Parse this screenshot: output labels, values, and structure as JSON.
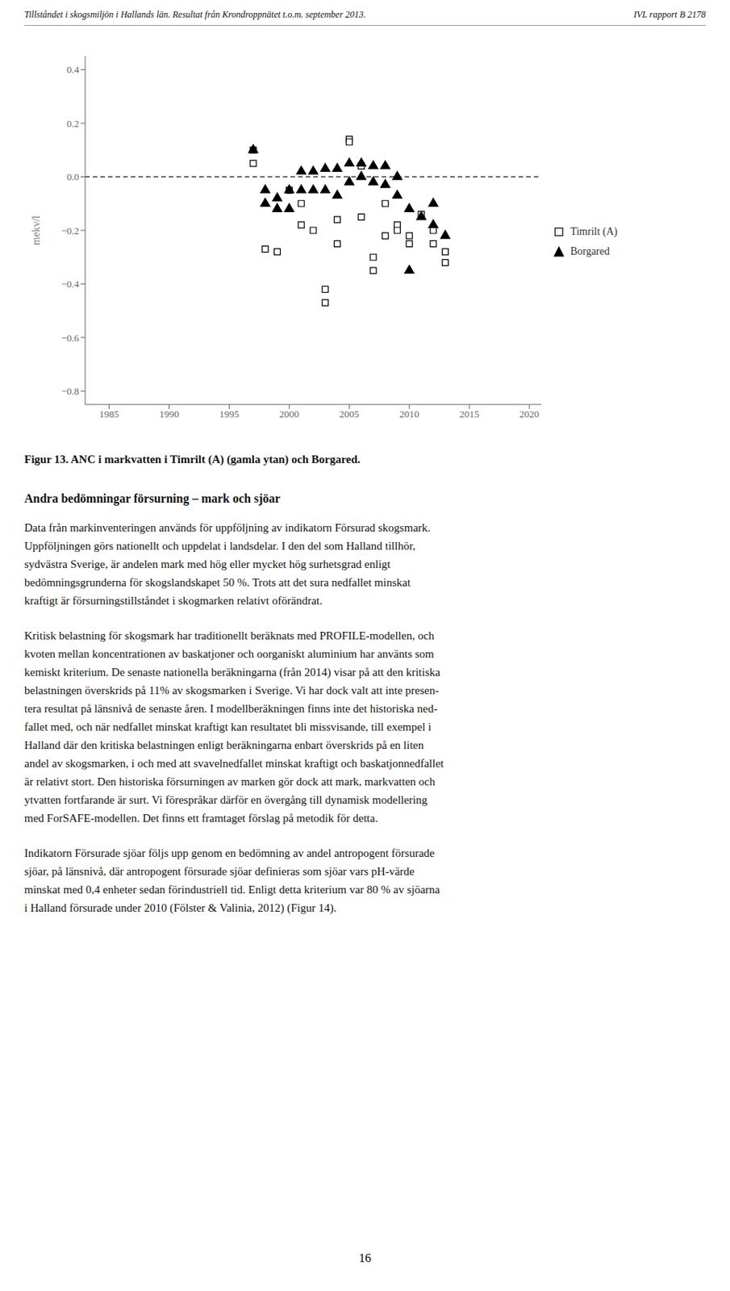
{
  "header_left": "Tillståndet i skogsmiljön i Hallands län. Resultat från Krondroppnätet t.o.m. september 2013.",
  "header_right": "IVL rapport B 2178",
  "chart_data": {
    "type": "scatter",
    "ylabel": "mekv/l",
    "xlim": [
      1983,
      2021
    ],
    "ylim": [
      -0.85,
      0.45
    ],
    "xticks": [
      1985,
      1990,
      1995,
      2000,
      2005,
      2010,
      2015,
      2020
    ],
    "yticks": [
      0.4,
      0.2,
      {
        "value": 0.0,
        "label": "0.0"
      },
      {
        "value": -0.2,
        "label": "−0.2"
      },
      {
        "value": -0.4,
        "label": "−0.4"
      },
      {
        "value": -0.6,
        "label": "−0.6"
      },
      {
        "value": -0.8,
        "label": "−0.8"
      }
    ],
    "grid": false,
    "legend": "right",
    "reference_line": {
      "y": 0.0,
      "line_style": "dashed"
    },
    "series": [
      {
        "name": "Timrilt (A)",
        "color": "#000000",
        "marker": "open_square",
        "x": [
          1997,
          1997,
          1998,
          1999,
          2000,
          2001,
          2001,
          2002,
          2003,
          2003,
          2004,
          2004,
          2005,
          2005,
          2006,
          2006,
          2007,
          2007,
          2008,
          2008,
          2009,
          2009,
          2010,
          2010,
          2011,
          2012,
          2012,
          2013,
          2013
        ],
        "values": [
          0.1,
          0.05,
          -0.27,
          -0.28,
          -0.05,
          -0.1,
          -0.18,
          -0.2,
          -0.42,
          -0.47,
          -0.16,
          -0.25,
          0.14,
          0.13,
          0.04,
          -0.15,
          -0.3,
          -0.35,
          -0.1,
          -0.22,
          -0.18,
          -0.2,
          -0.22,
          -0.25,
          -0.14,
          -0.2,
          -0.25,
          -0.28,
          -0.32
        ]
      },
      {
        "name": "Borgared",
        "color": "#000000",
        "marker": "triangle",
        "x": [
          1997,
          1998,
          1998,
          1999,
          1999,
          2000,
          2000,
          2001,
          2001,
          2002,
          2002,
          2003,
          2003,
          2004,
          2004,
          2005,
          2005,
          2006,
          2006,
          2007,
          2007,
          2008,
          2008,
          2009,
          2009,
          2010,
          2010,
          2011,
          2012,
          2012,
          2013
        ],
        "values": [
          0.1,
          -0.05,
          -0.1,
          -0.08,
          -0.12,
          -0.05,
          -0.12,
          0.02,
          -0.05,
          0.02,
          -0.05,
          0.03,
          -0.05,
          0.03,
          -0.07,
          0.05,
          -0.02,
          0.05,
          0.0,
          0.04,
          -0.02,
          0.04,
          -0.03,
          0.0,
          -0.07,
          -0.35,
          -0.12,
          -0.15,
          -0.1,
          -0.18,
          -0.22
        ]
      }
    ]
  },
  "caption": "Figur 13. ANC i markvatten i Timrilt (A) (gamla ytan) och Borgared.",
  "section_title": "Andra bedömningar försurning – mark och sjöar",
  "paragraphs": [
    [
      "Data från markinventeringen används för uppföljning av indikatorn Försurad skogsmark.",
      "Uppföljningen görs nationellt och uppdelat i landsdelar. I den del som Halland tillhör,",
      "sydvästra Sverige, är andelen mark med hög eller mycket hög surhetsgrad enligt",
      "bedömningsgrunderna för skogslandskapet 50 %. Trots att det sura nedfallet minskat",
      "kraftigt är försurningstillståndet i skogmarken relativt oförändrat."
    ],
    [
      "Kritisk belastning för skogsmark har traditionellt beräknats med PROFILE-modellen, och",
      "kvoten mellan koncentrationen av baskatjoner och oorganiskt aluminium har använts som",
      "kemiskt kriterium. De senaste nationella beräkningarna (från 2014) visar på att den kritiska",
      "belastningen överskrids på 11% av skogsmarken i Sverige. Vi har dock valt att inte presen-",
      "tera resultat på länsnivå de senaste åren. I modellberäkningen finns inte det historiska ned-",
      "fallet med, och när nedfallet minskat kraftigt kan resultatet bli missvisande, till exempel i",
      "Halland där den kritiska belastningen enligt beräkningarna enbart överskrids på en liten",
      "andel av skogsmarken, i och med att svavelnedfallet minskat kraftigt och baskatjonnedfallet",
      "är relativt stort. Den historiska försurningen av marken gör dock att mark, markvatten och",
      "ytvatten fortfarande är surt. Vi förespråkar därför en övergång till dynamisk modellering",
      "med ForSAFE-modellen. Det finns ett framtaget förslag på metodik för detta."
    ],
    [
      "Indikatorn Försurade sjöar följs upp genom en bedömning av andel antropogent försurade",
      "sjöar, på länsnivå, där antropogent försurade sjöar definieras som sjöar vars pH-värde",
      "minskat med 0,4 enheter sedan förindustriell tid. Enligt detta kriterium var 80 % av sjöarna",
      "i Halland försurade under 2010 (Fölster & Valinia, 2012) (Figur 14)."
    ]
  ],
  "page_number": "16"
}
